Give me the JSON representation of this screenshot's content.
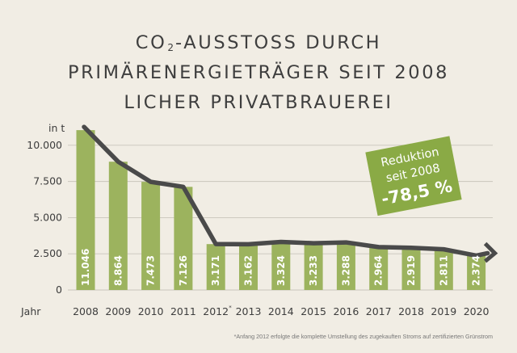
{
  "title": {
    "line1_pre": "CO",
    "line1_sub": "2",
    "line1_post": "-AUSSTOSS DURCH",
    "line2": "PRIMÄRENERGIETRÄGER SEIT 2008",
    "line3": "LICHER PRIVATBRAUEREI"
  },
  "chart_data": {
    "type": "bar",
    "ylabel": "in t",
    "xlabel": "Jahr",
    "ylim": [
      0,
      12000
    ],
    "yticks": [
      0,
      2500,
      5000,
      7500,
      10000
    ],
    "ytick_labels": [
      "0",
      "2.500",
      "5.000",
      "7.500",
      "10.000"
    ],
    "categories": [
      "2008",
      "2009",
      "2010",
      "2011",
      "2012",
      "2013",
      "2014",
      "2015",
      "2016",
      "2017",
      "2018",
      "2019",
      "2020"
    ],
    "category_marks": [
      "",
      "",
      "",
      "",
      "*",
      "",
      "",
      "",
      "",
      "",
      "",
      "",
      ""
    ],
    "values": [
      11046,
      8864,
      7473,
      7126,
      3171,
      3162,
      3324,
      3233,
      3288,
      2964,
      2919,
      2811,
      2374
    ],
    "value_labels": [
      "11.046",
      "8.864",
      "7.473",
      "7.126",
      "3.171",
      "3.162",
      "3.324",
      "3.233",
      "3.288",
      "2.964",
      "2.919",
      "2.811",
      "2.374"
    ],
    "grid": true,
    "trend_line": true,
    "colors": {
      "bar": "#9cb35e",
      "line": "#4a4a4a",
      "grid": "#c9c5bb",
      "badge": "#8aaa45"
    },
    "annotation": {
      "line1": "Reduktion",
      "line2": "seit 2008",
      "line3": "-78,5 %"
    }
  },
  "footnote": "*Anfang 2012 erfolgte die komplette Umstellung des zugekauften Stroms auf zertifizierten Grünstrom"
}
